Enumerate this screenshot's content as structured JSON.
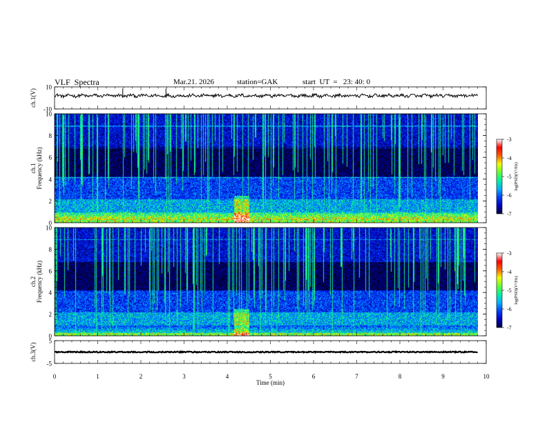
{
  "header": {
    "title": "VLF  Spectra",
    "date": "Mar.21. 2026",
    "station": "station=GAK",
    "start": "start  UT  =   23: 40: 0"
  },
  "chart_data": [
    {
      "type": "line",
      "panel": "ch1-waveform",
      "ylabel": "ch.1(V)",
      "ylim": [
        -10,
        10
      ],
      "yticks": [
        "10",
        "-10"
      ],
      "xlim": [
        0,
        10
      ],
      "line_color": "#000000"
    },
    {
      "type": "heatmap",
      "panel": "ch1-spectrogram",
      "ylabel_lines": [
        "ch.1",
        "Frequency  (kHz)"
      ],
      "ylim": [
        0,
        10
      ],
      "yticks": [
        "0",
        "2",
        "4",
        "6",
        "8",
        "10"
      ],
      "xlim": [
        0,
        9.8
      ],
      "colorbar": {
        "label": "log(PSD)(V²/Hz)",
        "ticks": [
          "-3",
          "-4",
          "-5",
          "-6",
          "-7"
        ],
        "range": [
          -7,
          -3
        ],
        "colors": [
          "#000040",
          "#0000ff",
          "#00a0ff",
          "#00ff80",
          "#ffff00",
          "#ff0000",
          "#ffffff"
        ]
      }
    },
    {
      "type": "heatmap",
      "panel": "ch2-spectrogram",
      "ylabel_lines": [
        "ch.2",
        "Frequency  (kHz)"
      ],
      "ylim": [
        0,
        10
      ],
      "yticks": [
        "0",
        "2",
        "4",
        "6",
        "8",
        "10"
      ],
      "xlim": [
        0,
        9.8
      ],
      "colorbar": {
        "label": "log(PSD)(V²/Hz)",
        "ticks": [
          "-3",
          "-4",
          "-5",
          "-6",
          "-7"
        ],
        "range": [
          -7,
          -3
        ],
        "colors": [
          "#000040",
          "#0000ff",
          "#00a0ff",
          "#00ff80",
          "#ffff00",
          "#ff0000",
          "#ffffff"
        ]
      }
    },
    {
      "type": "line",
      "panel": "ch3-waveform",
      "ylabel": "ch.3(V)",
      "ylim": [
        -5,
        5
      ],
      "yticks": [
        "5",
        "-5"
      ],
      "xlim": [
        0,
        10
      ],
      "line_color": "#000000"
    }
  ],
  "x_axis": {
    "label": "Time  (min)",
    "ticks": [
      "0",
      "1",
      "2",
      "3",
      "4",
      "5",
      "6",
      "7",
      "8",
      "9",
      "10"
    ]
  }
}
